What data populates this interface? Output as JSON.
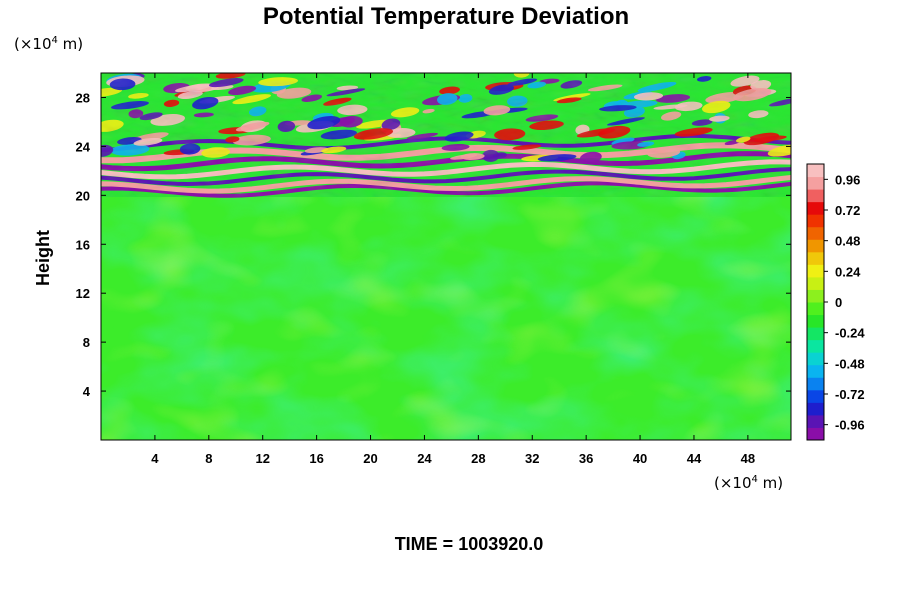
{
  "chart_data": {
    "type": "heatmap",
    "title": "Potential Temperature Deviation",
    "ylabel": "Height",
    "xlabel": "",
    "x_unit": "(×10",
    "y_unit": "(×10",
    "unit_exp": "4",
    "unit_tail": " m)",
    "footer": "TIME = 1003920.0",
    "xlim": [
      0,
      51.2
    ],
    "ylim": [
      0,
      30
    ],
    "x_ticks": [
      4,
      8,
      12,
      16,
      20,
      24,
      28,
      32,
      36,
      40,
      44,
      48
    ],
    "x_tick_labels": [
      "4",
      "8",
      "12",
      "16",
      "20",
      "24",
      "28",
      "32",
      "36",
      "40",
      "44",
      "48"
    ],
    "y_ticks": [
      4,
      8,
      12,
      16,
      20,
      24,
      28
    ],
    "y_tick_labels": [
      "4",
      "8",
      "12",
      "16",
      "20",
      "24",
      "28"
    ],
    "colorbar": {
      "range": [
        -1.08,
        1.08
      ],
      "ticks": [
        0.96,
        0.72,
        0.48,
        0.24,
        0,
        -0.24,
        -0.48,
        -0.72,
        -0.96
      ],
      "tick_labels": [
        "0.96",
        "0.72",
        "0.48",
        "0.24",
        "0",
        "-0.24",
        "-0.48",
        "-0.72",
        "-0.96"
      ],
      "colors": [
        "#8a0ea8",
        "#5a14b4",
        "#1e1ecd",
        "#0a46e6",
        "#0a82f0",
        "#0ab4f0",
        "#0ad2d2",
        "#0ae6a0",
        "#14e664",
        "#28e628",
        "#50f01e",
        "#8cf01e",
        "#c8f014",
        "#f0f014",
        "#f0c80a",
        "#f09600",
        "#f06400",
        "#f03200",
        "#e60a0a",
        "#f06060",
        "#f5a0a0",
        "#f8c0c0"
      ]
    },
    "field_description_regions": {
      "lower": {
        "y_range": [
          0,
          19.8
        ],
        "dominant_value": 0.0
      },
      "upper": {
        "y_range": [
          19.8,
          30
        ],
        "structure": "alternating positive/negative layers"
      }
    }
  }
}
